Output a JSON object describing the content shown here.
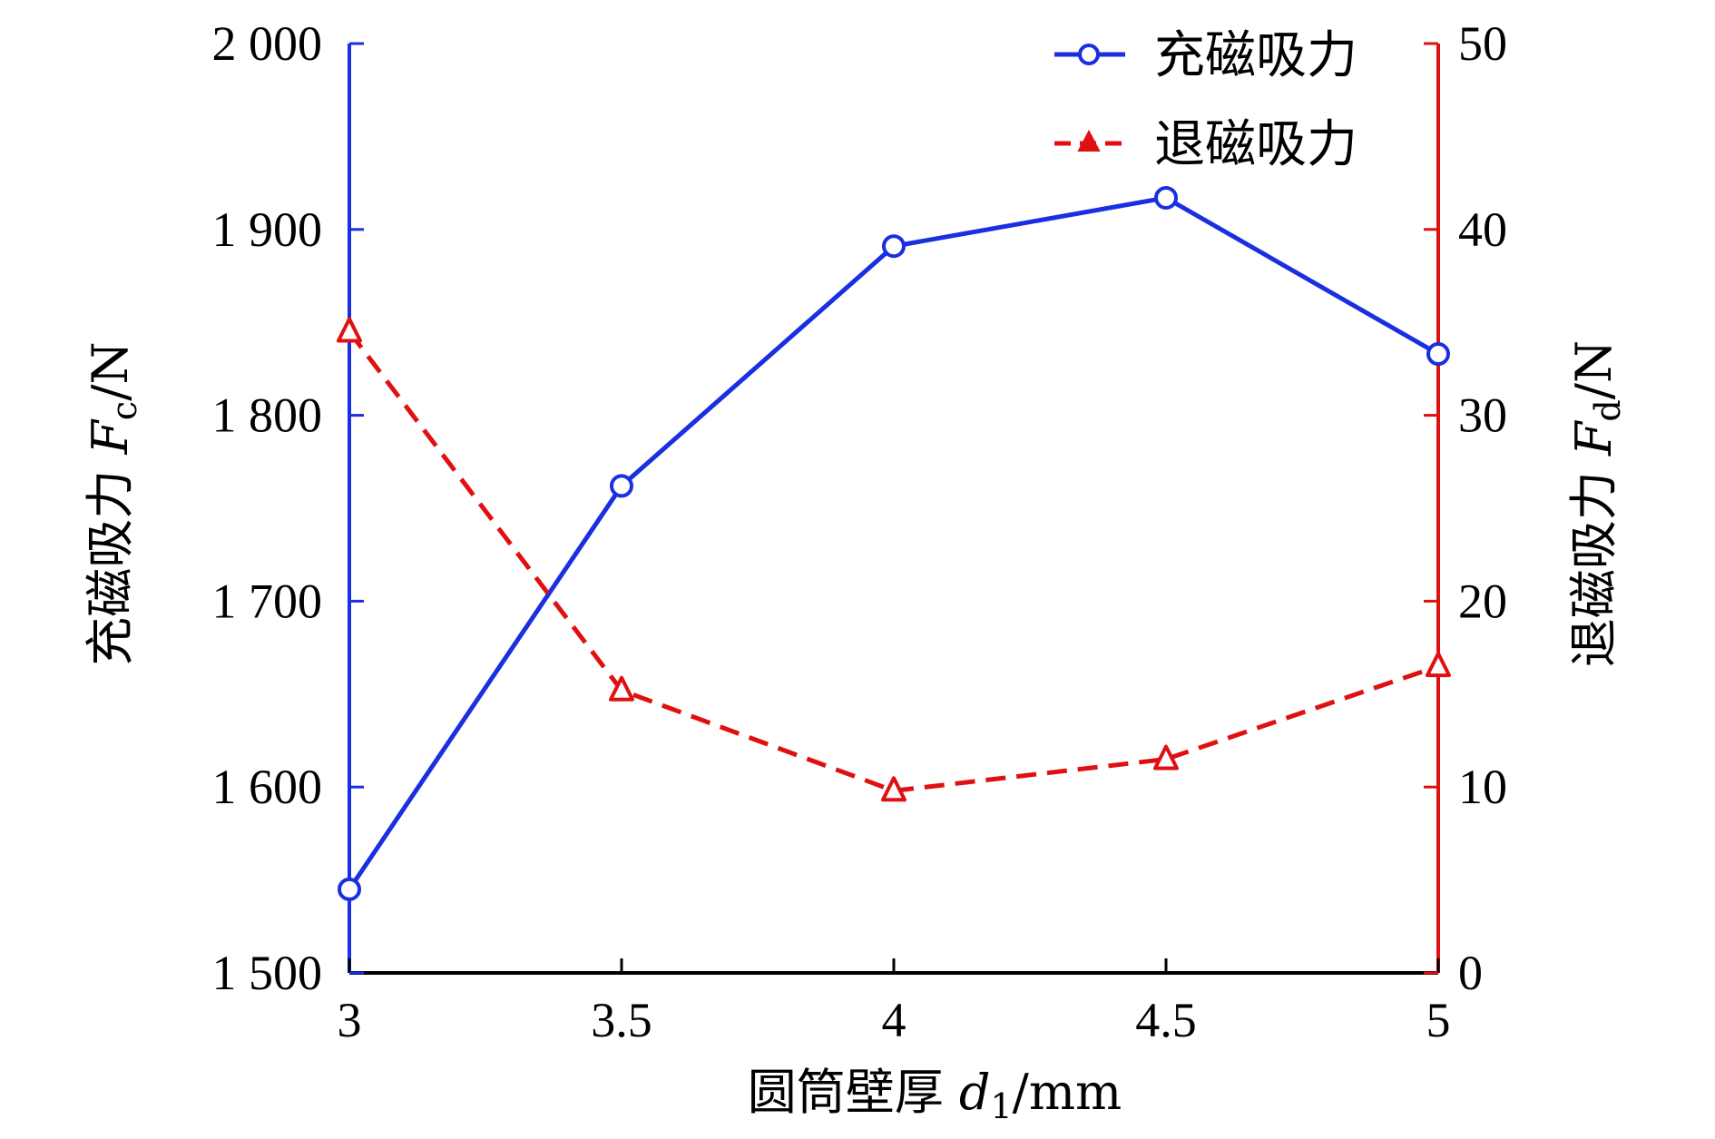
{
  "chart_data": {
    "type": "line",
    "x": [
      3,
      3.5,
      4,
      4.5,
      5
    ],
    "x_tick_labels": [
      "3",
      "3.5",
      "4",
      "4.5",
      "5"
    ],
    "xlabel": "圆筒壁厚 d1/mm",
    "xlim": [
      3,
      5
    ],
    "y_left": {
      "label": "充磁吸力 Fc/N",
      "lim": [
        1500,
        2000
      ],
      "ticks": [
        1500,
        1600,
        1700,
        1800,
        1900,
        2000
      ],
      "tick_labels": [
        "1 500",
        "1 600",
        "1 700",
        "1 800",
        "1 900",
        "2 000"
      ],
      "color": "#1a2fe0"
    },
    "y_right": {
      "label": "退磁吸力 Fd/N",
      "lim": [
        0,
        50
      ],
      "ticks": [
        0,
        10,
        20,
        30,
        40,
        50
      ],
      "tick_labels": [
        "0",
        "10",
        "20",
        "30",
        "40",
        "50"
      ],
      "color": "#e01010"
    },
    "series": [
      {
        "name": "充磁吸力",
        "axis": "left",
        "values": [
          1545,
          1762,
          1891,
          1917,
          1833
        ],
        "color": "#1a2fe0",
        "line_style": "solid",
        "marker": "circle"
      },
      {
        "name": "退磁吸力",
        "axis": "right",
        "values": [
          34.5,
          15.2,
          9.8,
          11.5,
          16.5
        ],
        "color": "#e01010",
        "line_style": "dashed",
        "marker": "triangle"
      }
    ],
    "legend_position": "top-right",
    "grid": false
  }
}
